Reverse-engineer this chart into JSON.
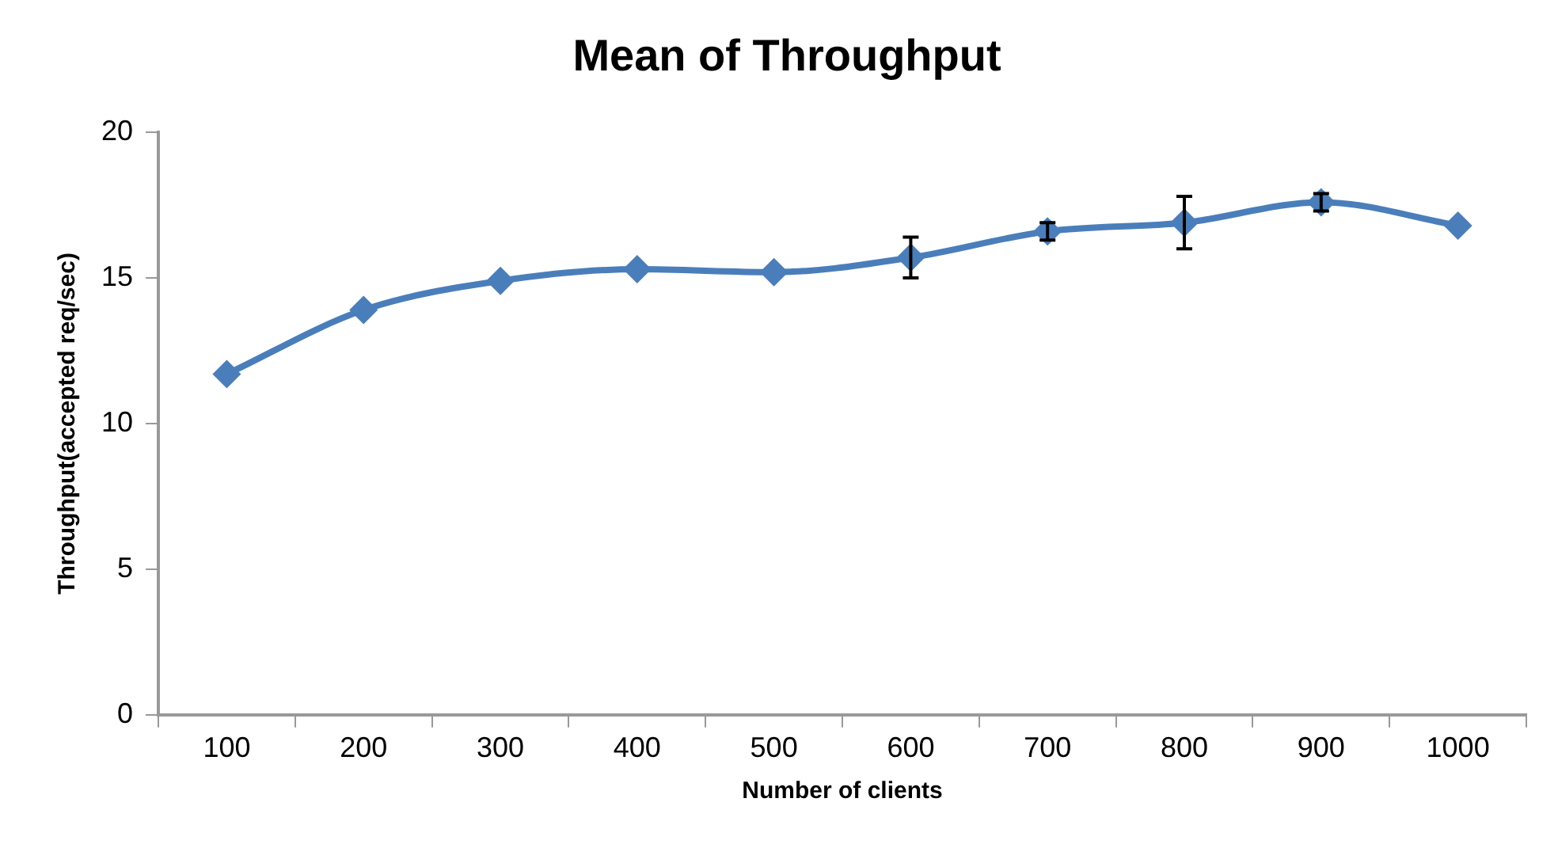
{
  "chart_data": {
    "type": "line",
    "title": "Mean of Throughput",
    "xlabel": "Number of clients",
    "ylabel": "Throughput(accepted req/sec)",
    "categories": [
      "100",
      "200",
      "300",
      "400",
      "500",
      "600",
      "700",
      "800",
      "900",
      "1000"
    ],
    "series": [
      {
        "color": "#4a7ebb",
        "values": [
          11.7,
          13.9,
          14.9,
          15.3,
          15.2,
          15.7,
          16.6,
          16.9,
          17.6,
          16.8
        ],
        "errors": [
          null,
          null,
          null,
          null,
          null,
          0.7,
          0.3,
          0.9,
          0.3,
          null
        ]
      }
    ],
    "ylim": [
      0,
      20
    ],
    "yticks": [
      0,
      5,
      10,
      15,
      20
    ],
    "grid": false,
    "legend": false,
    "marker": "diamond",
    "line_style": "solid"
  }
}
